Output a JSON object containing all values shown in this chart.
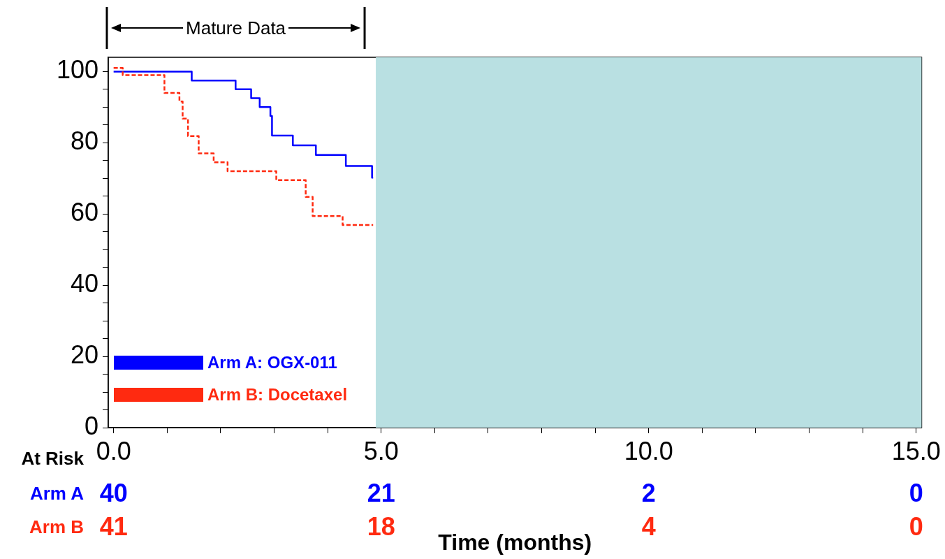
{
  "chart_data": {
    "type": "step",
    "xlabel": "Time (months)",
    "xlim": [
      -0.1,
      15.1
    ],
    "ylim": [
      0,
      104
    ],
    "xticks": [
      {
        "value": 0,
        "label": "0.0"
      },
      {
        "value": 1,
        "label": null
      },
      {
        "value": 2,
        "label": null
      },
      {
        "value": 3,
        "label": null
      },
      {
        "value": 4,
        "label": null
      },
      {
        "value": 5,
        "label": "5.0"
      },
      {
        "value": 6,
        "label": null
      },
      {
        "value": 7,
        "label": null
      },
      {
        "value": 8,
        "label": null
      },
      {
        "value": 9,
        "label": null
      },
      {
        "value": 10,
        "label": "10.0"
      },
      {
        "value": 11,
        "label": null
      },
      {
        "value": 12,
        "label": null
      },
      {
        "value": 13,
        "label": null
      },
      {
        "value": 14,
        "label": null
      },
      {
        "value": 15,
        "label": "15.0"
      }
    ],
    "yticks": [
      0,
      {
        "value": 5,
        "label": null
      },
      {
        "value": 10,
        "label": null
      },
      {
        "value": 15,
        "label": null
      },
      20,
      {
        "value": 25,
        "label": null
      },
      {
        "value": 30,
        "label": null
      },
      {
        "value": 35,
        "label": null
      },
      40,
      {
        "value": 45,
        "label": null
      },
      {
        "value": 50,
        "label": null
      },
      {
        "value": 55,
        "label": null
      },
      60,
      {
        "value": 65,
        "label": null
      },
      {
        "value": 70,
        "label": null
      },
      {
        "value": 75,
        "label": null
      },
      80,
      {
        "value": 85,
        "label": null
      },
      {
        "value": 90,
        "label": null
      },
      {
        "value": 95,
        "label": null
      },
      100
    ],
    "grid": false,
    "legend": "bottom left",
    "series": [
      {
        "name": "Arm A: OGX-011",
        "color": "#0000ff",
        "line_style": "solid",
        "x": [
          0,
          1.46,
          2.28,
          2.57,
          2.73,
          2.93,
          2.96,
          3.35,
          3.78,
          4.34,
          4.83,
          4.85
        ],
        "values": [
          100,
          97.5,
          95,
          92.5,
          90,
          87.5,
          82,
          79.3,
          76.6,
          73.5,
          70.2,
          70.2
        ]
      },
      {
        "name": "Arm B: Docetaxel",
        "color": "#ff2a10",
        "line_style": "dashed",
        "x": [
          0,
          0.17,
          0.95,
          1.23,
          1.29,
          1.39,
          1.59,
          1.87,
          2.13,
          3.04,
          3.59,
          3.72,
          4.28,
          4.85
        ],
        "values": [
          101,
          99,
          94,
          91.6,
          86.8,
          81.9,
          77,
          74.5,
          72,
          69.5,
          64.8,
          59.4,
          56.9,
          56.9
        ]
      }
    ],
    "bands": [
      {
        "axis": "x",
        "from": 4.9,
        "to": 15.1,
        "color": "#b9e0e2"
      }
    ],
    "annotations": [
      "Mature Data",
      "At Risk",
      "Arm A",
      "40",
      "21",
      "2",
      "0",
      "Arm B",
      "41",
      "18",
      "4",
      "0"
    ]
  }
}
